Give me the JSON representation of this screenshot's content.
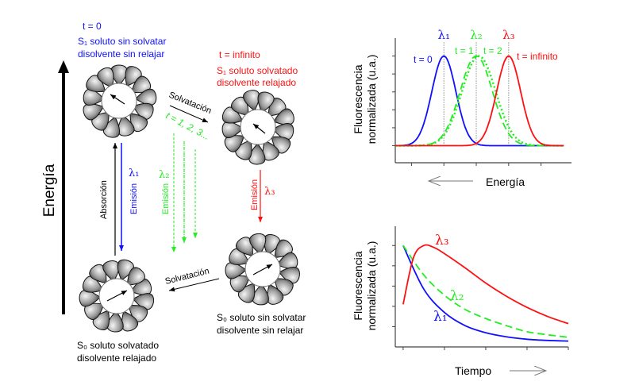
{
  "colors": {
    "blue": "#1010ff",
    "red": "#ff1010",
    "green": "#22ee22",
    "black": "#000000"
  },
  "energy_axis": {
    "label": "Energía"
  },
  "states": {
    "s1_unsolvated": {
      "time": "t = 0",
      "line1": "S₁ soluto sin solvatar",
      "line2": "disolvente sin relajar"
    },
    "s1_solvated": {
      "time": "t = infinito",
      "line1": "S₁ soluto solvatado",
      "line2": "disolvente relajado"
    },
    "s0_unsolvated": {
      "line1": "S₀ soluto sin solvatar",
      "line2": "disolvente sin relajar"
    },
    "s0_solvated": {
      "line1": "S₀ soluto solvatado",
      "line2": "disolvente relajado"
    }
  },
  "transitions": {
    "solvation_top": "Solvatación",
    "solvation_times": "t = 1, 2, 3...",
    "solvation_bottom": "Solvatación",
    "absorption": "Absorción",
    "emission1": {
      "label": "Emisión",
      "lambda": "λ₁"
    },
    "emission2": {
      "label": "Emisión",
      "lambda": "λ₂"
    },
    "emission3": {
      "label": "Emisión",
      "lambda": "λ₃"
    }
  },
  "chart_data": [
    {
      "type": "line",
      "ylabel_line1": "Fluorescencia",
      "ylabel_line2": "normalizada (u.a.)",
      "xlabel": "Energía",
      "xlabel_arrow": "left",
      "xlim": [
        0.5,
        5.94
      ],
      "ylim": [
        -0.19,
        1.2
      ],
      "xticks": [
        1,
        2,
        3,
        4,
        5
      ],
      "yticks": [
        0,
        0.2,
        0.4,
        0.6,
        0.8,
        1.0
      ],
      "peak_markers": [
        {
          "label": "λ₁",
          "x": 2,
          "color": "#1010ff"
        },
        {
          "label": "λ₂",
          "x": 3,
          "color": "#22ee22"
        },
        {
          "label": "λ₃",
          "x": 4,
          "color": "#ff1010"
        }
      ],
      "series": [
        {
          "name": "t = 0",
          "shape": "gaussian",
          "center": 2,
          "sigma": 0.37,
          "amplitude": 1,
          "color": "#1010ff",
          "style": "solid"
        },
        {
          "name": "t = 1",
          "shape": "gaussian",
          "center": 3,
          "sigma": 0.5,
          "amplitude": 1,
          "color": "#22ee22",
          "style": "dashed"
        },
        {
          "name": "t = 2",
          "shape": "gaussian",
          "center": 3.08,
          "sigma": 0.52,
          "amplitude": 1,
          "color": "#22ee22",
          "style": "dotted"
        },
        {
          "name": "t = infinito",
          "shape": "gaussian",
          "center": 4,
          "sigma": 0.37,
          "amplitude": 1,
          "color": "#ff1010",
          "style": "solid"
        }
      ]
    },
    {
      "type": "line",
      "ylabel_line1": "Fluorescencia",
      "ylabel_line2": "normalizada (u.a.)",
      "xlabel": "Tiempo",
      "xlabel_arrow": "right",
      "xlim": [
        -0.19,
        4
      ],
      "ylim": [
        0,
        1.19
      ],
      "xticks": [
        0,
        1,
        2,
        3,
        4
      ],
      "yticks": [
        0.2,
        0.4,
        0.6,
        0.8,
        1.0
      ],
      "series": [
        {
          "name": "λ₁",
          "color": "#1010ff",
          "style": "solid",
          "x": [
            0,
            0.5,
            1,
            1.5,
            2,
            2.5,
            3,
            3.5,
            4
          ],
          "y": [
            1.0,
            0.57,
            0.34,
            0.21,
            0.14,
            0.1,
            0.076,
            0.064,
            0.058
          ]
        },
        {
          "name": "λ₂",
          "color": "#22ee22",
          "style": "dashed",
          "x": [
            0,
            0.5,
            1,
            1.5,
            2,
            2.5,
            3,
            3.5,
            4
          ],
          "y": [
            1.0,
            0.71,
            0.51,
            0.37,
            0.28,
            0.21,
            0.15,
            0.12,
            0.095
          ]
        },
        {
          "name": "λ₃",
          "color": "#ff1010",
          "style": "solid",
          "x": [
            0,
            0.25,
            0.5,
            0.75,
            1,
            1.5,
            2,
            2.5,
            3,
            3.5,
            4
          ],
          "y": [
            0.42,
            0.88,
            1.0,
            0.98,
            0.92,
            0.78,
            0.63,
            0.5,
            0.39,
            0.3,
            0.23
          ]
        }
      ]
    }
  ]
}
